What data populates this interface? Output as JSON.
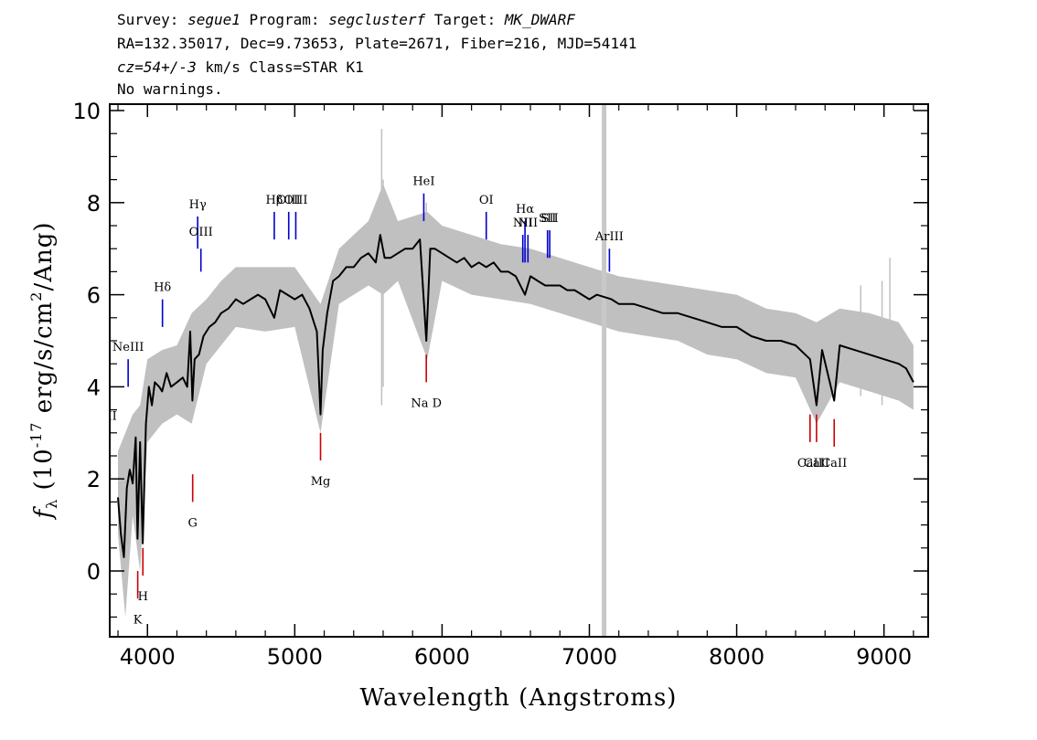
{
  "header": {
    "line1": {
      "survey_label": "Survey: ",
      "survey": "segue1",
      "program_label": " Program: ",
      "program": "segclusterf",
      "target_label": " Target: ",
      "target": "MK_DWARF"
    },
    "line2": "RA=132.35017, Dec=9.73653, Plate=2671, Fiber=216, MJD=54141",
    "line3": {
      "cz": "cz=54+/-3",
      "rest": " km/s Class=STAR K1"
    },
    "line4": "No warnings."
  },
  "chart_data": {
    "type": "line",
    "xlabel": "Wavelength (Angstroms)",
    "ylabel": {
      "f": "f",
      "sub": "λ",
      "pre": " (10",
      "sup": "-17",
      "mid": " erg/s/cm",
      "sup2": "2",
      "post": "/Ang)"
    },
    "xlim": [
      3700,
      9300
    ],
    "ylim": [
      -1.4,
      10.2
    ],
    "xticks": [
      4000,
      5000,
      6000,
      7000,
      8000,
      9000
    ],
    "xtick_labels": [
      "4000",
      "5000",
      "6000",
      "7000",
      "8000",
      "9000"
    ],
    "yticks": [
      0,
      2,
      4,
      6,
      8,
      10
    ],
    "ytick_labels": [
      "0",
      "2",
      "4",
      "6",
      "8",
      "10"
    ],
    "grid": false,
    "colors": {
      "spectrum": "#000000",
      "error": "#c0c0c0",
      "emission": "#0000cc",
      "absorption": "#cc0000"
    },
    "gap_marker_x": 7100,
    "spectrum": [
      [
        3800,
        1.6
      ],
      [
        3820,
        0.8
      ],
      [
        3840,
        0.3
      ],
      [
        3860,
        1.8
      ],
      [
        3880,
        2.2
      ],
      [
        3900,
        1.9
      ],
      [
        3920,
        2.9
      ],
      [
        3933,
        0.7
      ],
      [
        3950,
        2.8
      ],
      [
        3968,
        0.6
      ],
      [
        3990,
        3.2
      ],
      [
        4010,
        4.0
      ],
      [
        4030,
        3.6
      ],
      [
        4050,
        4.1
      ],
      [
        4080,
        4.0
      ],
      [
        4100,
        3.9
      ],
      [
        4130,
        4.3
      ],
      [
        4160,
        4.0
      ],
      [
        4200,
        4.1
      ],
      [
        4240,
        4.2
      ],
      [
        4270,
        4.0
      ],
      [
        4290,
        5.2
      ],
      [
        4305,
        3.7
      ],
      [
        4320,
        4.6
      ],
      [
        4350,
        4.7
      ],
      [
        4380,
        5.1
      ],
      [
        4420,
        5.3
      ],
      [
        4460,
        5.4
      ],
      [
        4500,
        5.6
      ],
      [
        4550,
        5.7
      ],
      [
        4600,
        5.9
      ],
      [
        4650,
        5.8
      ],
      [
        4700,
        5.9
      ],
      [
        4750,
        6.0
      ],
      [
        4800,
        5.9
      ],
      [
        4861,
        5.5
      ],
      [
        4900,
        6.1
      ],
      [
        4950,
        6.0
      ],
      [
        5000,
        5.9
      ],
      [
        5050,
        6.0
      ],
      [
        5100,
        5.7
      ],
      [
        5150,
        5.2
      ],
      [
        5175,
        3.4
      ],
      [
        5190,
        4.8
      ],
      [
        5220,
        5.6
      ],
      [
        5260,
        6.3
      ],
      [
        5300,
        6.4
      ],
      [
        5350,
        6.6
      ],
      [
        5400,
        6.6
      ],
      [
        5450,
        6.8
      ],
      [
        5500,
        6.9
      ],
      [
        5550,
        6.7
      ],
      [
        5580,
        7.3
      ],
      [
        5610,
        6.8
      ],
      [
        5650,
        6.8
      ],
      [
        5700,
        6.9
      ],
      [
        5750,
        7.0
      ],
      [
        5800,
        7.0
      ],
      [
        5850,
        7.2
      ],
      [
        5893,
        5.0
      ],
      [
        5920,
        7.0
      ],
      [
        5950,
        7.0
      ],
      [
        6000,
        6.9
      ],
      [
        6050,
        6.8
      ],
      [
        6100,
        6.7
      ],
      [
        6150,
        6.8
      ],
      [
        6200,
        6.6
      ],
      [
        6250,
        6.7
      ],
      [
        6300,
        6.6
      ],
      [
        6350,
        6.7
      ],
      [
        6400,
        6.5
      ],
      [
        6450,
        6.5
      ],
      [
        6500,
        6.4
      ],
      [
        6563,
        6.0
      ],
      [
        6600,
        6.4
      ],
      [
        6650,
        6.3
      ],
      [
        6700,
        6.2
      ],
      [
        6750,
        6.2
      ],
      [
        6800,
        6.2
      ],
      [
        6850,
        6.1
      ],
      [
        6900,
        6.1
      ],
      [
        6950,
        6.0
      ],
      [
        7000,
        5.9
      ],
      [
        7050,
        6.0
      ],
      [
        7150,
        5.9
      ],
      [
        7200,
        5.8
      ],
      [
        7300,
        5.8
      ],
      [
        7400,
        5.7
      ],
      [
        7500,
        5.6
      ],
      [
        7600,
        5.6
      ],
      [
        7700,
        5.5
      ],
      [
        7800,
        5.4
      ],
      [
        7900,
        5.3
      ],
      [
        8000,
        5.3
      ],
      [
        8100,
        5.1
      ],
      [
        8200,
        5.0
      ],
      [
        8300,
        5.0
      ],
      [
        8400,
        4.9
      ],
      [
        8498,
        4.6
      ],
      [
        8542,
        3.6
      ],
      [
        8580,
        4.8
      ],
      [
        8662,
        3.7
      ],
      [
        8700,
        4.9
      ],
      [
        8800,
        4.8
      ],
      [
        8900,
        4.7
      ],
      [
        9000,
        4.6
      ],
      [
        9100,
        4.5
      ],
      [
        9150,
        4.4
      ],
      [
        9200,
        4.1
      ]
    ],
    "error_band": [
      [
        3800,
        0.8,
        2.6
      ],
      [
        3850,
        -1.0,
        3.0
      ],
      [
        3900,
        1.2,
        3.4
      ],
      [
        3950,
        0.0,
        3.6
      ],
      [
        4000,
        2.8,
        4.6
      ],
      [
        4100,
        3.2,
        4.8
      ],
      [
        4200,
        3.4,
        4.9
      ],
      [
        4300,
        3.2,
        5.6
      ],
      [
        4400,
        4.5,
        5.9
      ],
      [
        4500,
        4.9,
        6.3
      ],
      [
        4600,
        5.3,
        6.6
      ],
      [
        4800,
        5.2,
        6.6
      ],
      [
        5000,
        5.3,
        6.6
      ],
      [
        5175,
        3.0,
        5.8
      ],
      [
        5300,
        5.8,
        7.0
      ],
      [
        5500,
        6.2,
        7.6
      ],
      [
        5600,
        6.0,
        8.4
      ],
      [
        5700,
        6.3,
        7.6
      ],
      [
        5900,
        4.6,
        7.8
      ],
      [
        6000,
        6.3,
        7.5
      ],
      [
        6200,
        6.0,
        7.3
      ],
      [
        6400,
        5.9,
        7.1
      ],
      [
        6600,
        5.8,
        7.0
      ],
      [
        6800,
        5.6,
        6.8
      ],
      [
        7000,
        5.4,
        6.6
      ],
      [
        7200,
        5.2,
        6.4
      ],
      [
        7400,
        5.1,
        6.3
      ],
      [
        7600,
        5.0,
        6.2
      ],
      [
        7800,
        4.7,
        6.1
      ],
      [
        8000,
        4.6,
        6.0
      ],
      [
        8200,
        4.3,
        5.7
      ],
      [
        8400,
        4.2,
        5.6
      ],
      [
        8542,
        3.2,
        5.4
      ],
      [
        8700,
        4.1,
        5.7
      ],
      [
        8900,
        3.9,
        5.6
      ],
      [
        9100,
        3.7,
        5.4
      ],
      [
        9200,
        3.5,
        4.9
      ]
    ],
    "error_spikes": [
      [
        5590,
        3.6,
        9.6
      ],
      [
        5600,
        4.0,
        8.5
      ],
      [
        5893,
        4.6,
        8.0
      ],
      [
        8842,
        3.8,
        6.2
      ],
      [
        8987,
        3.6,
        6.3
      ],
      [
        9040,
        4.0,
        6.8
      ],
      [
        8870,
        4.0,
        5.6
      ],
      [
        7980,
        4.6,
        5.9
      ]
    ],
    "emission_lines": [
      {
        "label": "OII",
        "x": 3727,
        "y1": 2.3,
        "y2": 2.9,
        "label_y": 3.2
      },
      {
        "label": "NeIII",
        "x": 3869,
        "y1": 4.0,
        "y2": 4.6,
        "label_y": 4.7
      },
      {
        "label": "Hδ",
        "x": 4102,
        "y1": 5.3,
        "y2": 5.9,
        "label_y": 6.0
      },
      {
        "label": "Hγ",
        "x": 4341,
        "y1": 7.0,
        "y2": 7.7,
        "label_y": 7.8
      },
      {
        "label": "OIII",
        "x": 4363,
        "y1": 6.5,
        "y2": 7.0,
        "label_y": 7.2
      },
      {
        "label": "Hβ",
        "x": 4861,
        "y1": 7.2,
        "y2": 7.8,
        "label_y": 7.9
      },
      {
        "label": "OIII",
        "x": 4959,
        "y1": 7.2,
        "y2": 7.8,
        "label_y": 7.9
      },
      {
        "label": "OIII",
        "x": 5007,
        "y1": 7.2,
        "y2": 7.8,
        "label_y": 7.9
      },
      {
        "label": "HeI",
        "x": 5876,
        "y1": 7.6,
        "y2": 8.2,
        "label_y": 8.3
      },
      {
        "label": "OI",
        "x": 6300,
        "y1": 7.2,
        "y2": 7.8,
        "label_y": 7.9
      },
      {
        "label": "NII",
        "x": 6548,
        "y1": 6.7,
        "y2": 7.3,
        "label_y": 7.4
      },
      {
        "label": "Hα",
        "x": 6563,
        "y1": 6.7,
        "y2": 7.6,
        "label_y": 7.7
      },
      {
        "label": "NII",
        "x": 6583,
        "y1": 6.7,
        "y2": 7.3,
        "label_y": 7.4
      },
      {
        "label": "SII",
        "x": 6716,
        "y1": 6.8,
        "y2": 7.4,
        "label_y": 7.5
      },
      {
        "label": "SII",
        "x": 6731,
        "y1": 6.8,
        "y2": 7.4,
        "label_y": 7.5
      },
      {
        "label": "ArIII",
        "x": 7136,
        "y1": 6.5,
        "y2": 7.0,
        "label_y": 7.1
      }
    ],
    "absorption_lines": [
      {
        "label": "K",
        "x": 3934,
        "y1": -0.6,
        "y2": 0.0,
        "label_y": -0.9
      },
      {
        "label": "H",
        "x": 3969,
        "y1": -0.1,
        "y2": 0.5,
        "label_y": -0.4
      },
      {
        "label": "G",
        "x": 4307,
        "y1": 1.5,
        "y2": 2.1,
        "label_y": 1.2
      },
      {
        "label": "Mg",
        "x": 5175,
        "y1": 2.4,
        "y2": 3.0,
        "label_y": 2.1
      },
      {
        "label": "Na D",
        "x": 5893,
        "y1": 4.1,
        "y2": 4.7,
        "label_y": 3.8
      },
      {
        "label": "CaII",
        "x": 8498,
        "y1": 2.8,
        "y2": 3.4,
        "label_y": 2.5
      },
      {
        "label": "CaII",
        "x": 8542,
        "y1": 2.8,
        "y2": 3.4,
        "label_y": 2.5
      },
      {
        "label": "CaII",
        "x": 8662,
        "y1": 2.7,
        "y2": 3.3,
        "label_y": 2.5
      }
    ]
  }
}
